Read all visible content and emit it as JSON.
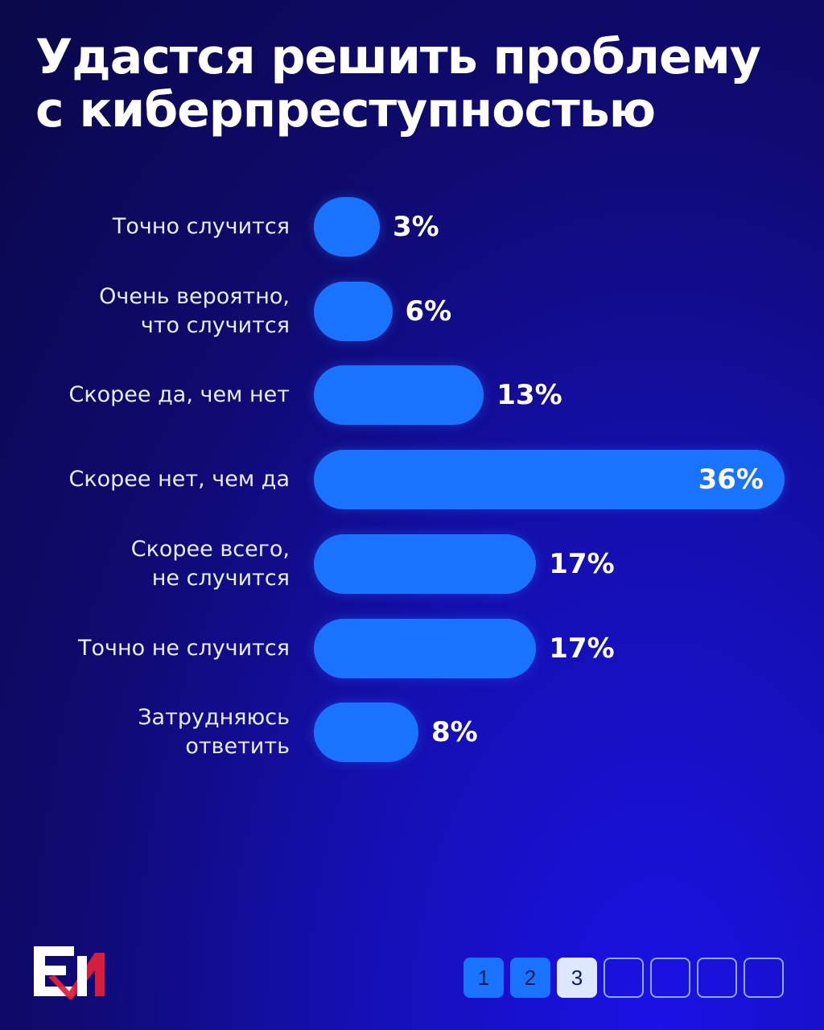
{
  "title": {
    "line1": "Удастся решить проблему",
    "line2": "с киберпреступностью"
  },
  "chart_data": {
    "type": "bar",
    "orientation": "horizontal",
    "categories": [
      "Точно случится",
      "Очень вероятно,\nчто случится",
      "Скорее да, чем нет",
      "Скорее нет, чем да",
      "Скорее всего,\nне случится",
      "Точно не случится",
      "Затрудняюсь\nответить"
    ],
    "values": [
      3,
      6,
      13,
      36,
      17,
      17,
      8
    ],
    "value_labels": [
      "3%",
      "6%",
      "13%",
      "36%",
      "17%",
      "17%",
      "8%"
    ],
    "unit": "%",
    "xlim": [
      0,
      36
    ],
    "bar_color": "#1a73ff",
    "grid": false,
    "legend": "none"
  },
  "logo": {
    "name": "brand-logo",
    "colors": [
      "#ffffff",
      "#e0203a"
    ]
  },
  "pager": {
    "pages": [
      "1",
      "2",
      "3",
      "",
      "",
      "",
      ""
    ],
    "current": "3"
  },
  "colors": {
    "background": "#0f0a6e",
    "accent": "#1a73ff"
  }
}
